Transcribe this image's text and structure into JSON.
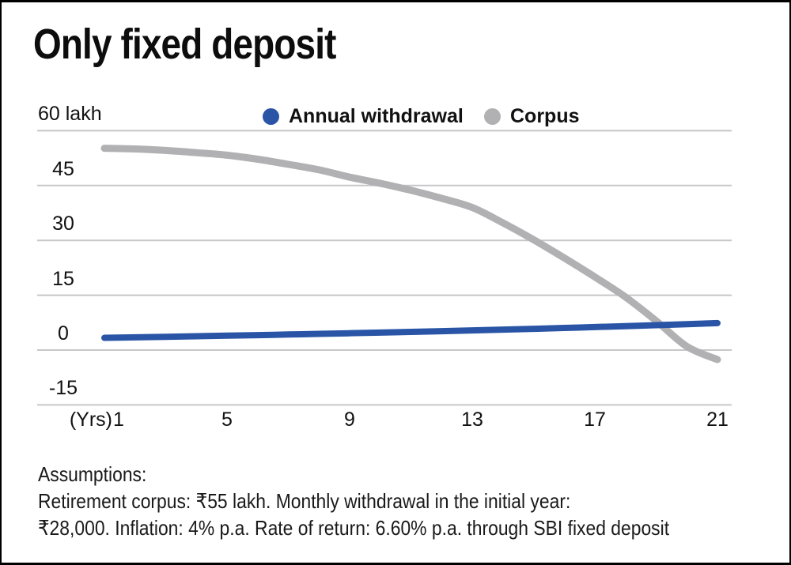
{
  "title": "Only fixed deposit",
  "chart_data": {
    "type": "line",
    "x": [
      1,
      2,
      3,
      4,
      5,
      6,
      7,
      8,
      9,
      10,
      11,
      12,
      13,
      14,
      15,
      16,
      17,
      18,
      19,
      20,
      21
    ],
    "series": [
      {
        "name": "Annual withdrawal",
        "color": "#2a55a6",
        "values": [
          3.36,
          3.49,
          3.63,
          3.78,
          3.93,
          4.09,
          4.25,
          4.42,
          4.6,
          4.78,
          4.97,
          5.17,
          5.38,
          5.59,
          5.82,
          6.05,
          6.29,
          6.54,
          6.81,
          7.08,
          7.36
        ]
      },
      {
        "name": "Corpus",
        "color": "#b1b1b4",
        "values": [
          55.2,
          55.0,
          54.6,
          54.0,
          53.3,
          52.2,
          50.8,
          49.3,
          47.3,
          45.6,
          43.7,
          41.5,
          39.0,
          34.8,
          30.2,
          25.2,
          20.0,
          14.5,
          8.0,
          1.0,
          -2.6
        ]
      }
    ],
    "y_ticks": [
      {
        "label": "60 lakh",
        "value": 60
      },
      {
        "label": "45",
        "value": 45
      },
      {
        "label": "30",
        "value": 30
      },
      {
        "label": "15",
        "value": 15
      },
      {
        "label": "0",
        "value": 0
      },
      {
        "label": "-15",
        "value": -15
      }
    ],
    "x_tick_years": [
      1,
      5,
      9,
      13,
      17,
      21
    ],
    "x_axis_unit": "(Yrs)",
    "ylim": [
      -15,
      60
    ],
    "xlim": [
      1,
      21
    ],
    "grid": true,
    "grid_color": "#c7c7c9",
    "legend_position": "top"
  },
  "assumptions": {
    "lines": [
      "Assumptions:",
      "Retirement corpus: ₹55 lakh. Monthly withdrawal in the initial year:",
      "₹28,000. Inflation: 4% p.a. Rate of return: 6.60% p.a. through SBI fixed deposit"
    ]
  }
}
